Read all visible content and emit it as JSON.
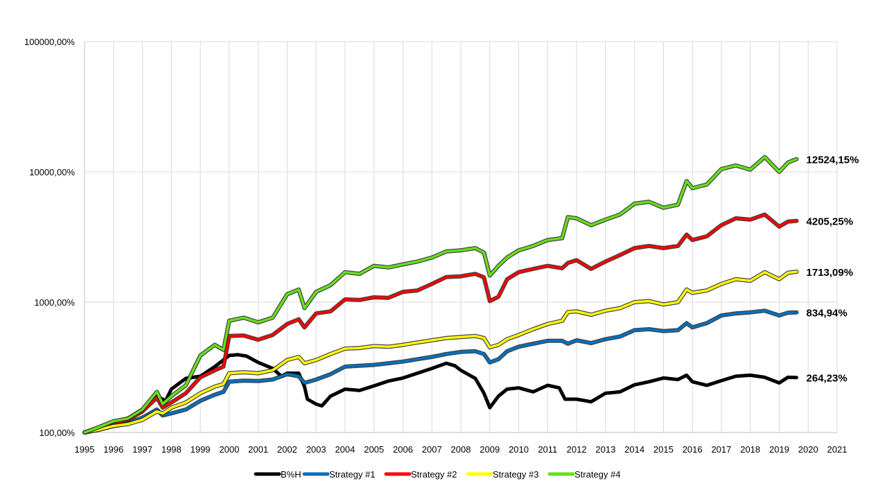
{
  "chart_data": {
    "type": "line",
    "title": "",
    "xlabel": "",
    "ylabel": "",
    "y_scale": "log",
    "ylim": [
      100,
      100000
    ],
    "xlim": [
      1995,
      2021
    ],
    "grid": true,
    "legend_position": "bottom",
    "y_ticks": [
      {
        "value": 100,
        "label": "100,00%"
      },
      {
        "value": 1000,
        "label": "1000,00%"
      },
      {
        "value": 10000,
        "label": "10000,00%"
      },
      {
        "value": 100000,
        "label": "100000,00%"
      }
    ],
    "x_ticks": [
      "1995",
      "1996",
      "1997",
      "1998",
      "1999",
      "2000",
      "2001",
      "2002",
      "2003",
      "2004",
      "2005",
      "2006",
      "2007",
      "2008",
      "2009",
      "2010",
      "2011",
      "2012",
      "2013",
      "2014",
      "2015",
      "2016",
      "2017",
      "2018",
      "2019",
      "2020",
      "2021"
    ],
    "series": [
      {
        "name": "B%H",
        "color": "#000000",
        "end_label": "264,23%",
        "points": [
          [
            1995.0,
            100
          ],
          [
            1995.5,
            108
          ],
          [
            1996.0,
            118
          ],
          [
            1996.5,
            128
          ],
          [
            1997.0,
            150
          ],
          [
            1997.5,
            190
          ],
          [
            1997.8,
            175
          ],
          [
            1998.0,
            215
          ],
          [
            1998.5,
            260
          ],
          [
            1999.0,
            270
          ],
          [
            1999.5,
            320
          ],
          [
            1999.8,
            360
          ],
          [
            2000.0,
            390
          ],
          [
            2000.3,
            395
          ],
          [
            2000.6,
            385
          ],
          [
            2001.0,
            345
          ],
          [
            2001.5,
            310
          ],
          [
            2001.8,
            270
          ],
          [
            2002.0,
            285
          ],
          [
            2002.4,
            285
          ],
          [
            2002.6,
            225
          ],
          [
            2002.7,
            180
          ],
          [
            2003.0,
            165
          ],
          [
            2003.2,
            160
          ],
          [
            2003.5,
            190
          ],
          [
            2004.0,
            215
          ],
          [
            2004.5,
            210
          ],
          [
            2005.0,
            228
          ],
          [
            2005.5,
            248
          ],
          [
            2006.0,
            262
          ],
          [
            2006.5,
            285
          ],
          [
            2007.0,
            310
          ],
          [
            2007.5,
            340
          ],
          [
            2007.8,
            325
          ],
          [
            2008.0,
            300
          ],
          [
            2008.5,
            260
          ],
          [
            2008.8,
            200
          ],
          [
            2009.0,
            155
          ],
          [
            2009.3,
            190
          ],
          [
            2009.6,
            215
          ],
          [
            2010.0,
            220
          ],
          [
            2010.5,
            205
          ],
          [
            2011.0,
            230
          ],
          [
            2011.4,
            220
          ],
          [
            2011.6,
            180
          ],
          [
            2012.0,
            180
          ],
          [
            2012.5,
            172
          ],
          [
            2013.0,
            200
          ],
          [
            2013.5,
            205
          ],
          [
            2014.0,
            232
          ],
          [
            2014.5,
            245
          ],
          [
            2015.0,
            262
          ],
          [
            2015.5,
            255
          ],
          [
            2015.8,
            275
          ],
          [
            2016.0,
            245
          ],
          [
            2016.5,
            230
          ],
          [
            2017.0,
            250
          ],
          [
            2017.5,
            270
          ],
          [
            2018.0,
            275
          ],
          [
            2018.5,
            265
          ],
          [
            2019.0,
            240
          ],
          [
            2019.3,
            265
          ],
          [
            2019.6,
            264
          ]
        ]
      },
      {
        "name": "Strategy #1",
        "color": "#0070c0",
        "end_label": "834,94%",
        "points": [
          [
            1995.0,
            100
          ],
          [
            1995.5,
            105
          ],
          [
            1996.0,
            112
          ],
          [
            1996.5,
            118
          ],
          [
            1997.0,
            130
          ],
          [
            1997.5,
            150
          ],
          [
            1997.7,
            135
          ],
          [
            1998.0,
            140
          ],
          [
            1998.5,
            150
          ],
          [
            1999.0,
            175
          ],
          [
            1999.5,
            195
          ],
          [
            1999.8,
            205
          ],
          [
            2000.0,
            245
          ],
          [
            2000.5,
            250
          ],
          [
            2001.0,
            248
          ],
          [
            2001.5,
            255
          ],
          [
            2002.0,
            280
          ],
          [
            2002.4,
            270
          ],
          [
            2002.6,
            240
          ],
          [
            2003.0,
            255
          ],
          [
            2003.5,
            280
          ],
          [
            2004.0,
            320
          ],
          [
            2004.5,
            325
          ],
          [
            2005.0,
            330
          ],
          [
            2005.5,
            340
          ],
          [
            2006.0,
            350
          ],
          [
            2006.5,
            365
          ],
          [
            2007.0,
            380
          ],
          [
            2007.5,
            400
          ],
          [
            2008.0,
            415
          ],
          [
            2008.5,
            420
          ],
          [
            2008.8,
            400
          ],
          [
            2009.0,
            345
          ],
          [
            2009.3,
            365
          ],
          [
            2009.6,
            420
          ],
          [
            2010.0,
            455
          ],
          [
            2010.5,
            480
          ],
          [
            2011.0,
            505
          ],
          [
            2011.5,
            505
          ],
          [
            2011.7,
            480
          ],
          [
            2012.0,
            510
          ],
          [
            2012.5,
            485
          ],
          [
            2013.0,
            520
          ],
          [
            2013.5,
            545
          ],
          [
            2014.0,
            610
          ],
          [
            2014.5,
            620
          ],
          [
            2015.0,
            600
          ],
          [
            2015.5,
            610
          ],
          [
            2015.8,
            690
          ],
          [
            2016.0,
            640
          ],
          [
            2016.5,
            690
          ],
          [
            2017.0,
            790
          ],
          [
            2017.5,
            820
          ],
          [
            2018.0,
            835
          ],
          [
            2018.5,
            860
          ],
          [
            2019.0,
            790
          ],
          [
            2019.3,
            830
          ],
          [
            2019.6,
            835
          ]
        ]
      },
      {
        "name": "Strategy #2",
        "color": "#ff0000",
        "end_label": "4205,25%",
        "points": [
          [
            1995.0,
            100
          ],
          [
            1995.5,
            108
          ],
          [
            1996.0,
            118
          ],
          [
            1996.5,
            125
          ],
          [
            1997.0,
            145
          ],
          [
            1997.5,
            185
          ],
          [
            1997.7,
            155
          ],
          [
            1998.0,
            170
          ],
          [
            1998.5,
            200
          ],
          [
            1999.0,
            265
          ],
          [
            1999.5,
            300
          ],
          [
            1999.8,
            320
          ],
          [
            2000.0,
            550
          ],
          [
            2000.5,
            555
          ],
          [
            2001.0,
            515
          ],
          [
            2001.5,
            560
          ],
          [
            2002.0,
            680
          ],
          [
            2002.4,
            740
          ],
          [
            2002.6,
            640
          ],
          [
            2003.0,
            820
          ],
          [
            2003.5,
            850
          ],
          [
            2004.0,
            1050
          ],
          [
            2004.5,
            1040
          ],
          [
            2005.0,
            1090
          ],
          [
            2005.5,
            1080
          ],
          [
            2006.0,
            1200
          ],
          [
            2006.5,
            1230
          ],
          [
            2007.0,
            1380
          ],
          [
            2007.5,
            1560
          ],
          [
            2008.0,
            1580
          ],
          [
            2008.5,
            1650
          ],
          [
            2008.8,
            1550
          ],
          [
            2009.0,
            1020
          ],
          [
            2009.3,
            1100
          ],
          [
            2009.6,
            1500
          ],
          [
            2010.0,
            1700
          ],
          [
            2010.5,
            1800
          ],
          [
            2011.0,
            1900
          ],
          [
            2011.5,
            1820
          ],
          [
            2011.7,
            2000
          ],
          [
            2012.0,
            2100
          ],
          [
            2012.5,
            1800
          ],
          [
            2013.0,
            2050
          ],
          [
            2013.5,
            2300
          ],
          [
            2014.0,
            2600
          ],
          [
            2014.5,
            2700
          ],
          [
            2015.0,
            2600
          ],
          [
            2015.5,
            2700
          ],
          [
            2015.8,
            3300
          ],
          [
            2016.0,
            3000
          ],
          [
            2016.5,
            3200
          ],
          [
            2017.0,
            3900
          ],
          [
            2017.5,
            4400
          ],
          [
            2018.0,
            4300
          ],
          [
            2018.5,
            4700
          ],
          [
            2019.0,
            3800
          ],
          [
            2019.3,
            4150
          ],
          [
            2019.6,
            4205
          ]
        ]
      },
      {
        "name": "Strategy #3",
        "color": "#ffff00",
        "end_label": "1713,09%",
        "points": [
          [
            1995.0,
            100
          ],
          [
            1995.5,
            105
          ],
          [
            1996.0,
            112
          ],
          [
            1996.5,
            116
          ],
          [
            1997.0,
            125
          ],
          [
            1997.5,
            145
          ],
          [
            1997.7,
            140
          ],
          [
            1998.0,
            155
          ],
          [
            1998.5,
            170
          ],
          [
            1999.0,
            200
          ],
          [
            1999.5,
            225
          ],
          [
            1999.8,
            235
          ],
          [
            2000.0,
            285
          ],
          [
            2000.5,
            290
          ],
          [
            2001.0,
            285
          ],
          [
            2001.5,
            300
          ],
          [
            2002.0,
            360
          ],
          [
            2002.4,
            380
          ],
          [
            2002.6,
            340
          ],
          [
            2003.0,
            360
          ],
          [
            2003.5,
            400
          ],
          [
            2004.0,
            440
          ],
          [
            2004.5,
            445
          ],
          [
            2005.0,
            460
          ],
          [
            2005.5,
            455
          ],
          [
            2006.0,
            470
          ],
          [
            2006.5,
            490
          ],
          [
            2007.0,
            510
          ],
          [
            2007.5,
            530
          ],
          [
            2008.0,
            540
          ],
          [
            2008.5,
            550
          ],
          [
            2008.8,
            530
          ],
          [
            2009.0,
            450
          ],
          [
            2009.3,
            470
          ],
          [
            2009.6,
            520
          ],
          [
            2010.0,
            560
          ],
          [
            2010.5,
            620
          ],
          [
            2011.0,
            680
          ],
          [
            2011.5,
            720
          ],
          [
            2011.7,
            840
          ],
          [
            2012.0,
            850
          ],
          [
            2012.5,
            800
          ],
          [
            2013.0,
            860
          ],
          [
            2013.5,
            900
          ],
          [
            2014.0,
            1000
          ],
          [
            2014.5,
            1020
          ],
          [
            2015.0,
            960
          ],
          [
            2015.5,
            1000
          ],
          [
            2015.8,
            1250
          ],
          [
            2016.0,
            1180
          ],
          [
            2016.5,
            1230
          ],
          [
            2017.0,
            1380
          ],
          [
            2017.5,
            1500
          ],
          [
            2018.0,
            1460
          ],
          [
            2018.5,
            1700
          ],
          [
            2019.0,
            1500
          ],
          [
            2019.3,
            1680
          ],
          [
            2019.6,
            1713
          ]
        ]
      },
      {
        "name": "Strategy #4",
        "color": "#66e01a",
        "end_label": "12524,15%",
        "points": [
          [
            1995.0,
            100
          ],
          [
            1995.5,
            110
          ],
          [
            1996.0,
            122
          ],
          [
            1996.5,
            128
          ],
          [
            1997.0,
            150
          ],
          [
            1997.5,
            205
          ],
          [
            1997.7,
            165
          ],
          [
            1998.0,
            190
          ],
          [
            1998.5,
            230
          ],
          [
            1999.0,
            390
          ],
          [
            1999.5,
            470
          ],
          [
            1999.8,
            430
          ],
          [
            2000.0,
            720
          ],
          [
            2000.5,
            760
          ],
          [
            2001.0,
            700
          ],
          [
            2001.5,
            760
          ],
          [
            2002.0,
            1150
          ],
          [
            2002.4,
            1250
          ],
          [
            2002.6,
            900
          ],
          [
            2003.0,
            1200
          ],
          [
            2003.5,
            1350
          ],
          [
            2004.0,
            1700
          ],
          [
            2004.5,
            1650
          ],
          [
            2005.0,
            1900
          ],
          [
            2005.5,
            1850
          ],
          [
            2006.0,
            1950
          ],
          [
            2006.5,
            2050
          ],
          [
            2007.0,
            2200
          ],
          [
            2007.5,
            2450
          ],
          [
            2008.0,
            2500
          ],
          [
            2008.5,
            2600
          ],
          [
            2008.8,
            2400
          ],
          [
            2009.0,
            1600
          ],
          [
            2009.3,
            1900
          ],
          [
            2009.6,
            2200
          ],
          [
            2010.0,
            2500
          ],
          [
            2010.5,
            2700
          ],
          [
            2011.0,
            3000
          ],
          [
            2011.5,
            3100
          ],
          [
            2011.7,
            4500
          ],
          [
            2012.0,
            4400
          ],
          [
            2012.5,
            3900
          ],
          [
            2013.0,
            4300
          ],
          [
            2013.5,
            4700
          ],
          [
            2014.0,
            5700
          ],
          [
            2014.5,
            5900
          ],
          [
            2015.0,
            5300
          ],
          [
            2015.5,
            5600
          ],
          [
            2015.8,
            8500
          ],
          [
            2016.0,
            7500
          ],
          [
            2016.5,
            8000
          ],
          [
            2017.0,
            10500
          ],
          [
            2017.5,
            11200
          ],
          [
            2018.0,
            10400
          ],
          [
            2018.5,
            13000
          ],
          [
            2019.0,
            10000
          ],
          [
            2019.3,
            11800
          ],
          [
            2019.6,
            12524
          ]
        ]
      }
    ]
  }
}
